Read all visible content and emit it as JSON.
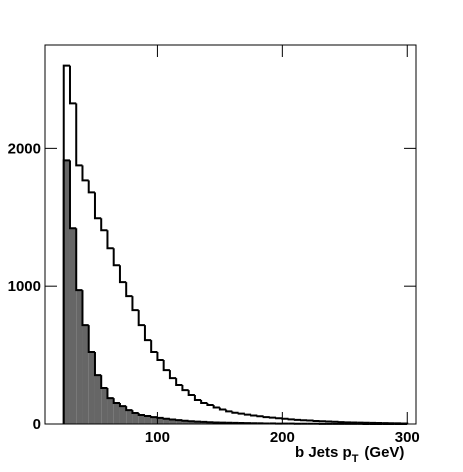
{
  "chart_data": {
    "type": "histogram",
    "bins": [
      25,
      30,
      35,
      40,
      45,
      50,
      55,
      60,
      65,
      70,
      75,
      80,
      85,
      90,
      95,
      100,
      105,
      110,
      115,
      120,
      125,
      130,
      135,
      140,
      145,
      150,
      155,
      160,
      165,
      170,
      175,
      180,
      185,
      190,
      195,
      200,
      205,
      210,
      215,
      220,
      225,
      230,
      235,
      240,
      245,
      250,
      255,
      260,
      265,
      270,
      275,
      280,
      285,
      290,
      295,
      300
    ],
    "series": [
      {
        "color": "#ffffff",
        "values": [
          2600,
          2326,
          1877,
          1768,
          1681,
          1493,
          1406,
          1275,
          1152,
          1029,
          928,
          826,
          717,
          609,
          522,
          464,
          391,
          333,
          283,
          246,
          210,
          174,
          152,
          138,
          120,
          105,
          92,
          82,
          75,
          68,
          62,
          56,
          50,
          46,
          42,
          38,
          34,
          30,
          27,
          25,
          22,
          20,
          18,
          16,
          14,
          12,
          11,
          10,
          9,
          8,
          7,
          6,
          5,
          5,
          4
        ]
      },
      {
        "color": "#666666",
        "values": [
          1913,
          1420,
          971,
          717,
          522,
          355,
          261,
          188,
          152,
          130,
          101,
          80,
          65,
          58,
          50,
          44,
          38,
          33,
          28,
          24,
          20,
          17,
          15,
          13,
          11,
          10,
          9,
          8,
          7,
          6,
          5,
          5,
          4,
          4,
          3,
          3,
          3,
          2,
          2,
          2,
          2,
          1,
          1,
          1,
          1,
          1,
          1,
          1,
          0,
          0,
          0,
          0,
          0,
          0,
          0
        ]
      }
    ],
    "xlabel": {
      "main": "b Jets p",
      "sub": "T",
      "unit": "(GeV)"
    },
    "xlim": [
      10,
      307
    ],
    "xticks": [
      100,
      200,
      300
    ],
    "ylim": [
      0,
      2750
    ],
    "yticks": [
      0,
      1000,
      2000
    ]
  }
}
